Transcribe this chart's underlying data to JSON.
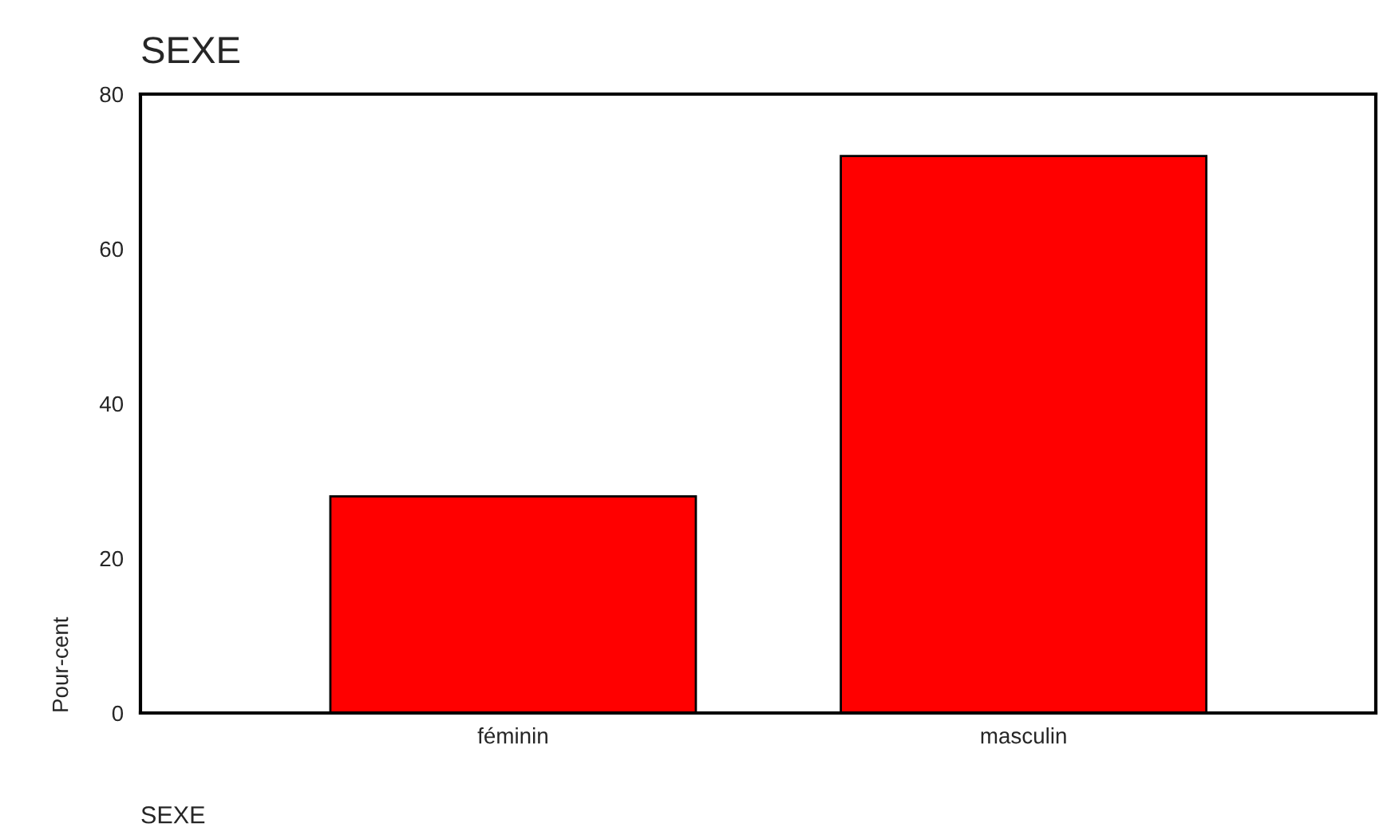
{
  "chart_data": {
    "type": "bar",
    "title": "SEXE",
    "xlabel": "SEXE",
    "ylabel": "Pour-cent",
    "categories": [
      "féminin",
      "masculin"
    ],
    "series": [
      {
        "color": "#ff0000",
        "values": [
          28,
          72
        ]
      }
    ],
    "ylim": [
      0,
      80
    ],
    "yticks": [
      0,
      20,
      40,
      60,
      80
    ],
    "grid": false,
    "legend": false
  }
}
